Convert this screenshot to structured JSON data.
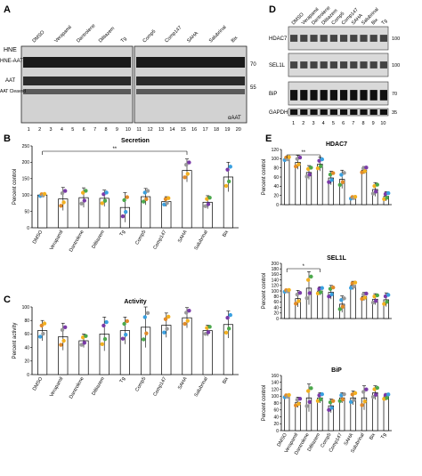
{
  "panels": {
    "A": {
      "letter": "A",
      "hne_label": "HNE",
      "hne_signs": [
        "-",
        "+",
        "-",
        "+",
        "-",
        "+",
        "-",
        "+",
        "-",
        "+",
        "-",
        "+",
        "-",
        "+",
        "-",
        "+",
        "-",
        "+",
        "-",
        "+"
      ],
      "group_labels": [
        "DMSO",
        "Verapamil",
        "Dantrolene",
        "Diltiazem",
        "Tg",
        "Comp5",
        "Comp147",
        "SAHA",
        "Salubrinal",
        "Bix"
      ],
      "band_labels": [
        "HNE-AAT",
        "AAT",
        "AAT Cleaved"
      ],
      "mw_markers": [
        "70",
        "55"
      ],
      "blot_label": "αAAT",
      "lane_numbers": [
        "1",
        "2",
        "3",
        "4",
        "5",
        "6",
        "7",
        "8",
        "9",
        "10",
        "11",
        "12",
        "13",
        "14",
        "15",
        "16",
        "17",
        "18",
        "19",
        "20"
      ]
    },
    "D": {
      "letter": "D",
      "lane_labels": [
        "DMSO",
        "Verapamil",
        "Dantrolene",
        "Diltiazem",
        "Comp5",
        "Comp147",
        "SAHA",
        "Salubrinal",
        "Bix",
        "Tg"
      ],
      "blots": [
        {
          "name": "HDAC7",
          "mw": "100"
        },
        {
          "name": "SEL1L",
          "mw": "100"
        },
        {
          "name": "BiP",
          "mw": "70"
        },
        {
          "name": "GAPDH",
          "mw": "35"
        }
      ],
      "lane_numbers": [
        "1",
        "2",
        "3",
        "4",
        "5",
        "6",
        "7",
        "8",
        "9",
        "10"
      ]
    }
  },
  "chart_data": [
    {
      "panel": "B",
      "type": "bar",
      "title": "Secretion",
      "ylabel": "Percent control",
      "ylim": [
        0,
        250
      ],
      "yticks": [
        "0",
        "50",
        "100",
        "150",
        "200",
        "250"
      ],
      "categories": [
        "DMSO",
        "Verapamil",
        "Dantrolene",
        "Diltiazem",
        "Tg",
        "Comp5",
        "Comp147",
        "SAHA",
        "Salubrinal",
        "Bix"
      ],
      "values": [
        100,
        88,
        92,
        90,
        62,
        95,
        80,
        175,
        78,
        155
      ],
      "errors": [
        0,
        35,
        30,
        25,
        45,
        25,
        15,
        35,
        20,
        45
      ],
      "significance": "**"
    },
    {
      "panel": "C",
      "type": "bar",
      "title": "Activity",
      "ylabel": "Percent activity",
      "ylim": [
        0,
        100
      ],
      "yticks": [
        "0",
        "20",
        "40",
        "60",
        "80",
        "100"
      ],
      "categories": [
        "DMSO",
        "Verapamil",
        "Dantrolene",
        "Diltiazem",
        "Tg",
        "Comp5",
        "Comp147",
        "SAHA",
        "Salubrinal",
        "Bix"
      ],
      "values": [
        65,
        56,
        50,
        60,
        65,
        70,
        73,
        84,
        65,
        74
      ],
      "errors": [
        15,
        20,
        10,
        25,
        20,
        30,
        18,
        15,
        8,
        20
      ]
    },
    {
      "panel": "E",
      "type": "bar",
      "title": "HDAC7",
      "ylabel": "Percent control",
      "ylim": [
        0,
        120
      ],
      "yticks": [
        "0",
        "20",
        "40",
        "60",
        "80",
        "100",
        "120"
      ],
      "categories": [
        "DMSO",
        "Verapamil",
        "Dantrolene",
        "Diltiazem",
        "Comp5",
        "Comp147",
        "SAHA",
        "Salubrinal",
        "Bix",
        "Tg"
      ],
      "values": [
        100,
        92,
        70,
        88,
        58,
        55,
        15,
        75,
        33,
        18
      ],
      "errors": [
        0,
        15,
        15,
        15,
        15,
        20,
        3,
        8,
        15,
        10
      ],
      "significance": "**"
    },
    {
      "panel": "E",
      "type": "bar",
      "title": "SEL1L",
      "ylabel": "Percent control",
      "ylim": [
        0,
        200
      ],
      "yticks": [
        "0",
        "20",
        "40",
        "60",
        "80",
        "100",
        "120",
        "140",
        "160",
        "180",
        "200"
      ],
      "categories": [
        "DMSO",
        "Verapamil",
        "Dantrolene",
        "Diltiazem",
        "Comp5",
        "Comp147",
        "SAHA",
        "Salubrinal",
        "Bix",
        "Tg"
      ],
      "values": [
        100,
        72,
        110,
        100,
        95,
        52,
        120,
        80,
        70,
        68
      ],
      "errors": [
        0,
        30,
        60,
        15,
        25,
        30,
        15,
        15,
        20,
        25
      ],
      "significance": "*"
    },
    {
      "panel": "E",
      "type": "bar",
      "title": "BiP",
      "ylabel": "Percent control",
      "ylim": [
        0,
        160
      ],
      "yticks": [
        "0",
        "20",
        "40",
        "60",
        "80",
        "100",
        "120",
        "140",
        "160"
      ],
      "categories": [
        "DMSO",
        "Verapamil",
        "Dantrolene",
        "Diltiazem",
        "Comp5",
        "Comp147",
        "SAHA",
        "Salubrinal",
        "Bix",
        "Tg"
      ],
      "values": [
        100,
        82,
        95,
        95,
        72,
        95,
        95,
        95,
        110,
        98
      ],
      "errors": [
        0,
        15,
        40,
        15,
        20,
        15,
        20,
        35,
        20,
        10
      ]
    }
  ]
}
